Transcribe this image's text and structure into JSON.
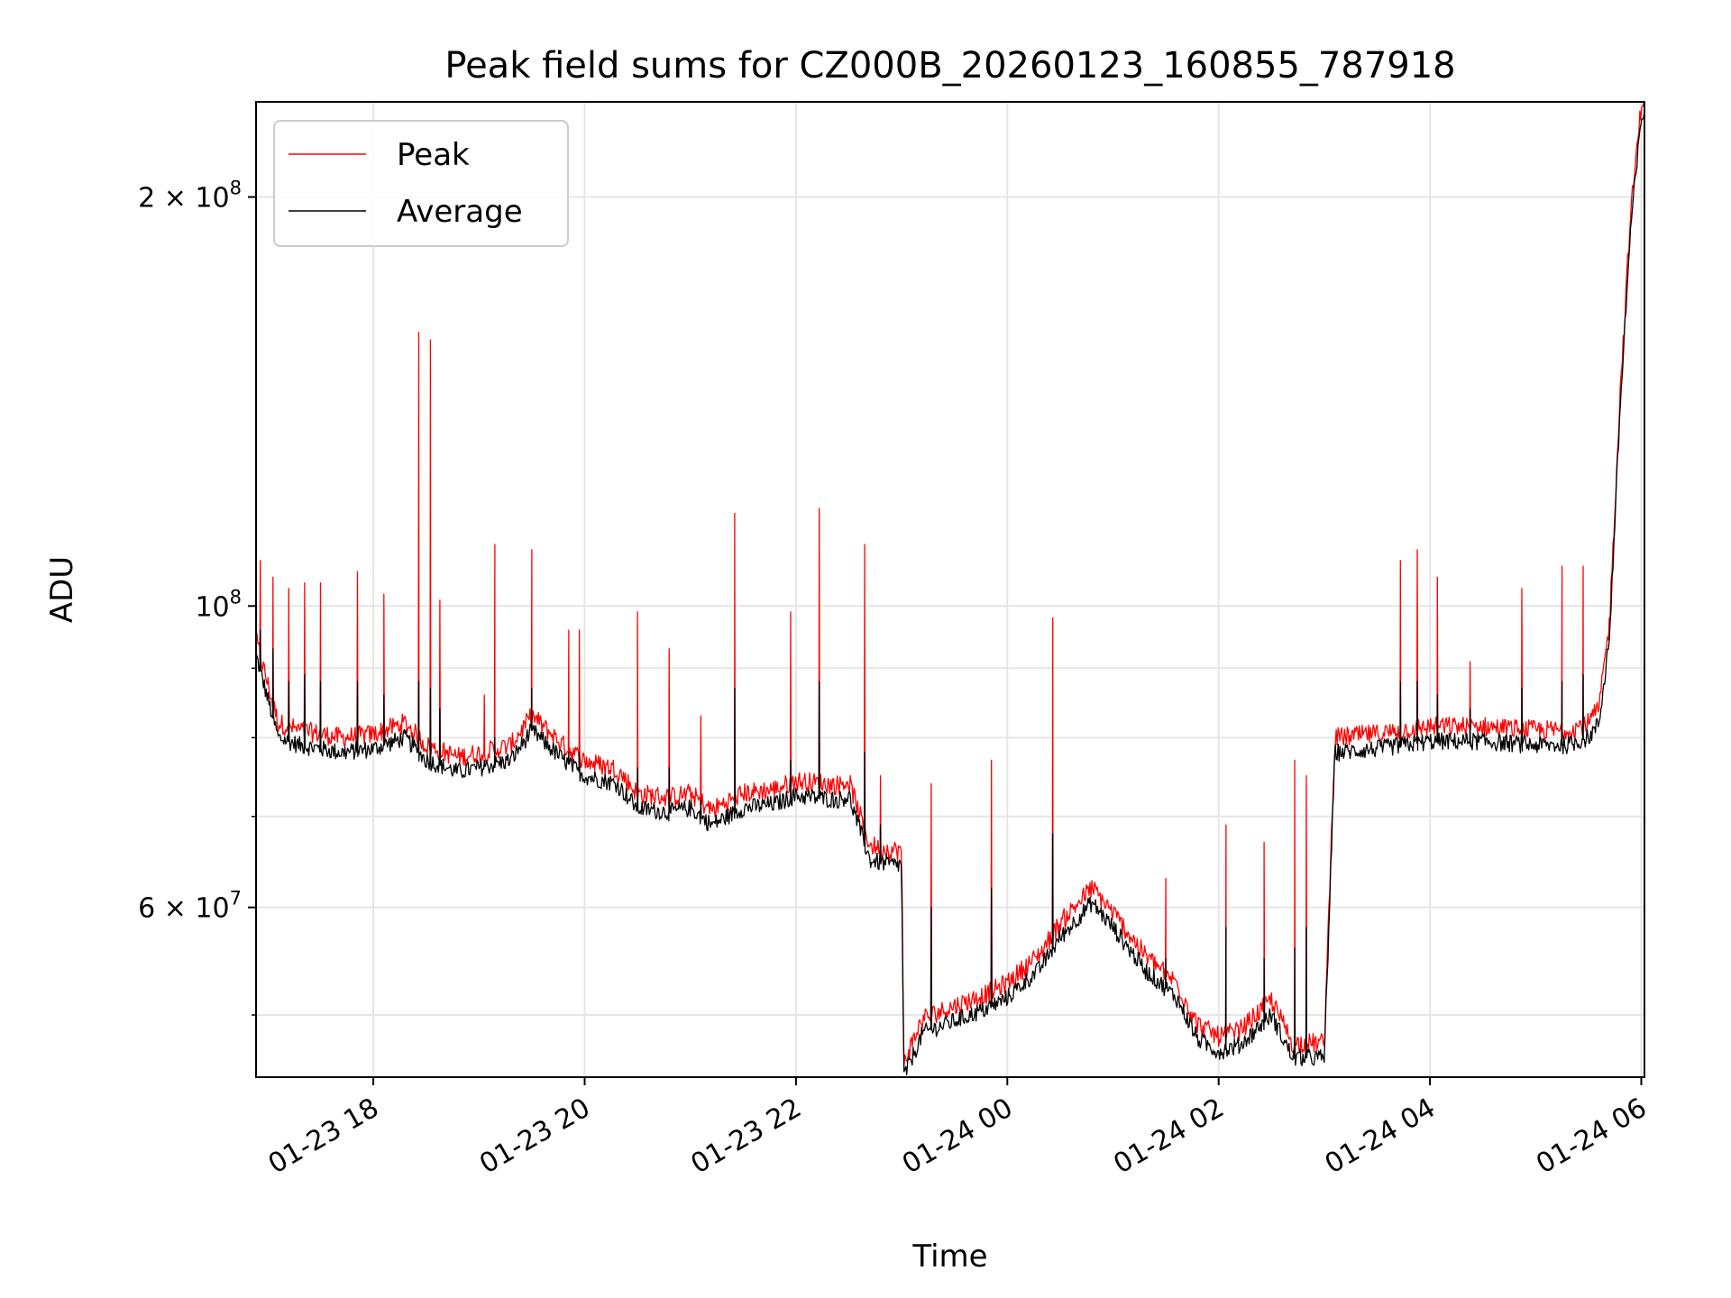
{
  "chart_data": {
    "type": "line",
    "title": "Peak field sums for CZ000B_20260123_160855_787918",
    "xlabel": "Time",
    "ylabel": "ADU",
    "y_scale": "log",
    "ylim": [
      45000000,
      235000000
    ],
    "xlim_hours_since_2026_01_23_00": [
      16.89,
      30.03
    ],
    "grid": true,
    "legend_position": "upper left",
    "x_ticks": [
      {
        "hours": 18,
        "label": "01-23 18"
      },
      {
        "hours": 20,
        "label": "01-23 20"
      },
      {
        "hours": 22,
        "label": "01-23 22"
      },
      {
        "hours": 24,
        "label": "01-24 00"
      },
      {
        "hours": 26,
        "label": "01-24 02"
      },
      {
        "hours": 28,
        "label": "01-24 04"
      },
      {
        "hours": 30,
        "label": "01-24 06"
      }
    ],
    "y_major_ticks": [
      {
        "value": 200000000,
        "base": "2 × 10",
        "exp": "8"
      },
      {
        "value": 100000000,
        "base": "10",
        "exp": "8"
      },
      {
        "value": 60000000,
        "base": "6 × 10",
        "exp": "7"
      }
    ],
    "y_minor_ticks": [
      50000000,
      70000000,
      80000000,
      90000000
    ],
    "baseline_hours": [
      16.89,
      17.1,
      17.3,
      17.5,
      17.7,
      18.0,
      18.3,
      18.5,
      18.8,
      19.0,
      19.3,
      19.5,
      19.8,
      20.0,
      20.3,
      20.5,
      20.8,
      21.0,
      21.2,
      21.5,
      21.8,
      22.0,
      22.4,
      22.5,
      22.7,
      22.9,
      23.0,
      23.02,
      23.2,
      23.5,
      23.8,
      24.0,
      24.3,
      24.5,
      24.8,
      25.0,
      25.3,
      25.6,
      25.8,
      26.0,
      26.2,
      26.5,
      26.7,
      27.0,
      27.1,
      27.5,
      28.0,
      28.5,
      29.0,
      29.3,
      29.5,
      29.6,
      29.7,
      29.8,
      29.9,
      30.0,
      30.03
    ],
    "baseline_avg": [
      92000000,
      80000000,
      79000000,
      78500000,
      78000000,
      78500000,
      80000000,
      77000000,
      75500000,
      76000000,
      77000000,
      81000000,
      77000000,
      75000000,
      74000000,
      71000000,
      70500000,
      71000000,
      69000000,
      71000000,
      71500000,
      72500000,
      72000000,
      72500000,
      65000000,
      64500000,
      64500000,
      45000000,
      48500000,
      49500000,
      50500000,
      51500000,
      54000000,
      57000000,
      60500000,
      58000000,
      54000000,
      51500000,
      48000000,
      47000000,
      47500000,
      50000000,
      46500000,
      46500000,
      78000000,
      78500000,
      79500000,
      79500000,
      79000000,
      79000000,
      80000000,
      82000000,
      95000000,
      140000000,
      190000000,
      228000000,
      232000000
    ],
    "spikes": [
      {
        "hours": 16.93,
        "peak": 108000000,
        "avg": 96000000
      },
      {
        "hours": 17.05,
        "peak": 105000000,
        "avg": 93000000
      },
      {
        "hours": 17.2,
        "peak": 103000000,
        "avg": 88000000
      },
      {
        "hours": 17.35,
        "peak": 104000000,
        "avg": 89000000
      },
      {
        "hours": 17.5,
        "peak": 104000000,
        "avg": 88000000
      },
      {
        "hours": 17.85,
        "peak": 106000000,
        "avg": 88000000
      },
      {
        "hours": 18.1,
        "peak": 102000000,
        "avg": 86000000
      },
      {
        "hours": 18.43,
        "peak": 159000000,
        "avg": 88000000
      },
      {
        "hours": 18.54,
        "peak": 157000000,
        "avg": 87000000
      },
      {
        "hours": 18.63,
        "peak": 101000000,
        "avg": 84000000
      },
      {
        "hours": 19.05,
        "peak": 86000000,
        "avg": 77000000
      },
      {
        "hours": 19.15,
        "peak": 111000000,
        "avg": 80000000
      },
      {
        "hours": 19.5,
        "peak": 110000000,
        "avg": 87000000
      },
      {
        "hours": 19.85,
        "peak": 96000000,
        "avg": 78000000
      },
      {
        "hours": 19.95,
        "peak": 96000000,
        "avg": 78000000
      },
      {
        "hours": 20.5,
        "peak": 99000000,
        "avg": 76000000
      },
      {
        "hours": 20.8,
        "peak": 93000000,
        "avg": 76000000
      },
      {
        "hours": 21.1,
        "peak": 83000000,
        "avg": 72000000
      },
      {
        "hours": 21.42,
        "peak": 117000000,
        "avg": 87000000
      },
      {
        "hours": 21.95,
        "peak": 99000000,
        "avg": 77000000
      },
      {
        "hours": 22.22,
        "peak": 118000000,
        "avg": 88000000
      },
      {
        "hours": 22.65,
        "peak": 111000000,
        "avg": 78000000
      },
      {
        "hours": 22.8,
        "peak": 75000000,
        "avg": 69000000
      },
      {
        "hours": 23.28,
        "peak": 74000000,
        "avg": 60000000
      },
      {
        "hours": 23.85,
        "peak": 77000000,
        "avg": 62000000
      },
      {
        "hours": 24.43,
        "peak": 98000000,
        "avg": 68000000
      },
      {
        "hours": 25.5,
        "peak": 63000000,
        "avg": 55000000
      },
      {
        "hours": 26.07,
        "peak": 69000000,
        "avg": 58000000
      },
      {
        "hours": 26.43,
        "peak": 67000000,
        "avg": 55000000
      },
      {
        "hours": 26.72,
        "peak": 77000000,
        "avg": 56000000
      },
      {
        "hours": 26.83,
        "peak": 75000000,
        "avg": 58000000
      },
      {
        "hours": 27.72,
        "peak": 108000000,
        "avg": 88000000
      },
      {
        "hours": 27.88,
        "peak": 110000000,
        "avg": 88000000
      },
      {
        "hours": 28.07,
        "peak": 105000000,
        "avg": 86000000
      },
      {
        "hours": 28.38,
        "peak": 91000000,
        "avg": 84000000
      },
      {
        "hours": 28.87,
        "peak": 103000000,
        "avg": 87000000
      },
      {
        "hours": 29.25,
        "peak": 107000000,
        "avg": 88000000
      },
      {
        "hours": 29.45,
        "peak": 107000000,
        "avg": 89000000
      }
    ],
    "series": [
      {
        "name": "Peak",
        "color": "#ff0000"
      },
      {
        "name": "Average",
        "color": "#000000"
      }
    ]
  }
}
